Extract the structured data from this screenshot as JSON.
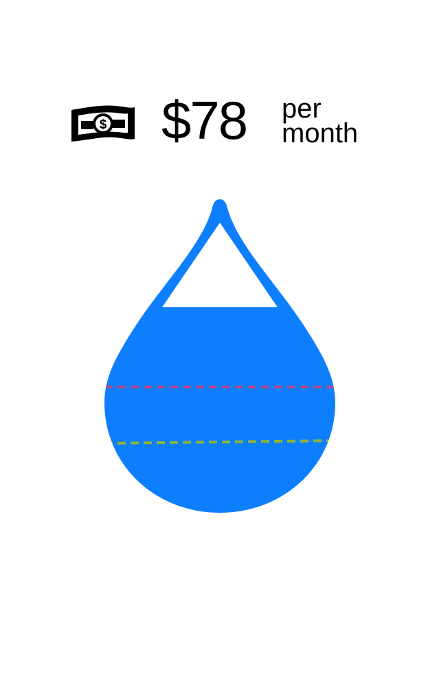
{
  "cost": {
    "amount": "$78",
    "period_line1": "per",
    "period_line2": "month",
    "icon": "dollar-bill-icon"
  },
  "water_drop": {
    "icon": "water-drop-icon",
    "fill_color": "#0d7ffe",
    "fill_level_percent": 66,
    "reference_lines": [
      {
        "name": "magenta-dashed-line",
        "color": "#b14b8a"
      },
      {
        "name": "green-dashed-line",
        "color": "#8db33e"
      }
    ]
  }
}
